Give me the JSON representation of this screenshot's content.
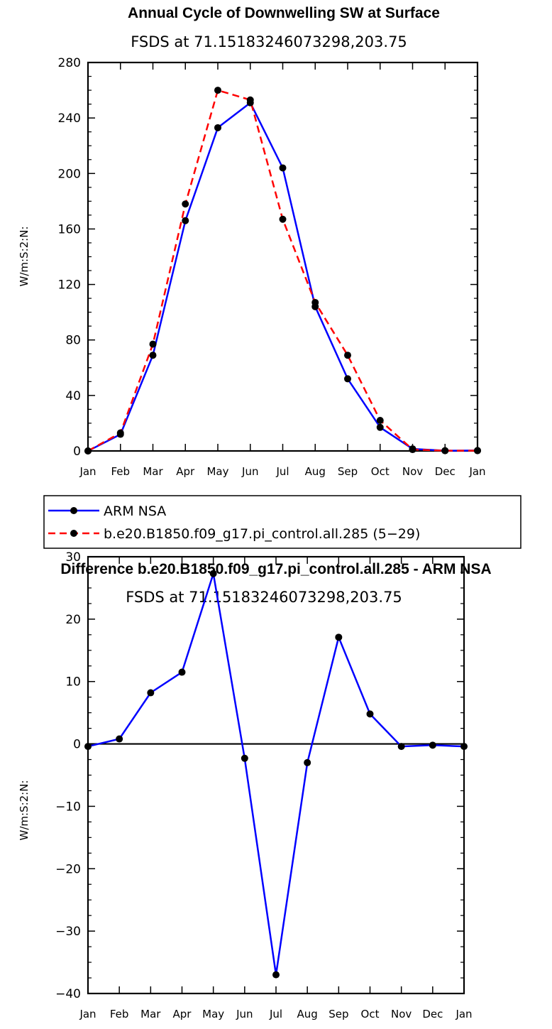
{
  "chart_data": [
    {
      "type": "line",
      "title": "Annual Cycle of Downwelling SW at Surface",
      "subtitle": "FSDS at 71.15183246073298,203.75",
      "ylabel": "W/m:S:2:N:",
      "ylim": [
        0,
        280
      ],
      "yticks": [
        "0",
        "40",
        "80",
        "120",
        "160",
        "200",
        "240",
        "280"
      ],
      "categories": [
        "Jan",
        "Feb",
        "Mar",
        "Apr",
        "May",
        "Jun",
        "Jul",
        "Aug",
        "Sep",
        "Oct",
        "Nov",
        "Dec",
        "Jan"
      ],
      "legend_position": "below",
      "series": [
        {
          "name": "ARM NSA",
          "color": "#0000ff",
          "dash": "solid",
          "values": [
            0,
            12,
            69,
            166,
            233,
            251,
            204,
            104,
            52,
            17,
            1.5,
            0.2,
            0.3
          ]
        },
        {
          "name": "b.e20.B1850.f09_g17.pi_control.all.285 (5−29)",
          "color": "#ff0000",
          "dash": "dashed",
          "values": [
            0,
            13,
            77,
            178,
            260,
            253,
            167,
            107,
            69,
            22,
            1.0,
            0.2,
            0.2
          ]
        }
      ]
    },
    {
      "type": "line",
      "title": "Difference b.e20.B1850.f09_g17.pi_control.all.285 - ARM NSA",
      "subtitle": "FSDS at 71.15183246073298,203.75",
      "ylabel": "W/m:S:2:N:",
      "ylim": [
        -40,
        30
      ],
      "yticks": [
        "−40",
        "−30",
        "−20",
        "−10",
        "0",
        "10",
        "20",
        "30"
      ],
      "categories": [
        "Jan",
        "Feb",
        "Mar",
        "Apr",
        "May",
        "Jun",
        "Jul",
        "Aug",
        "Sep",
        "Oct",
        "Nov",
        "Dec",
        "Jan"
      ],
      "series": [
        {
          "color": "#0000ff",
          "dash": "solid",
          "values": [
            -0.4,
            0.8,
            8.2,
            11.5,
            27.3,
            -2.3,
            -37.0,
            -3.0,
            17.1,
            4.8,
            -0.4,
            -0.2,
            -0.4
          ]
        }
      ]
    }
  ]
}
